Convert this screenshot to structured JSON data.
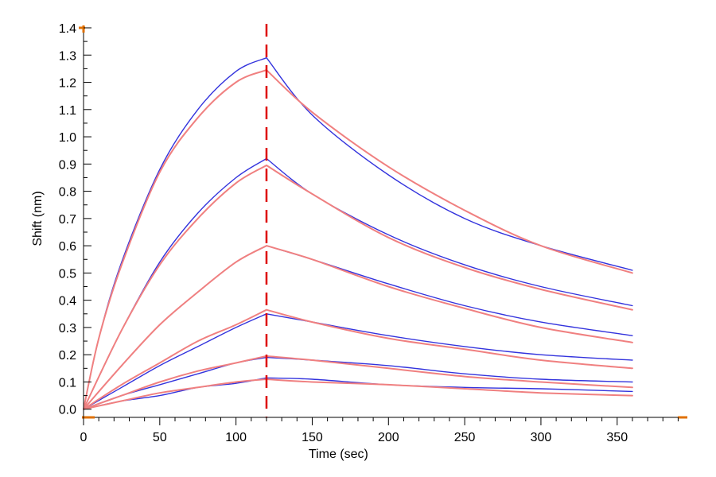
{
  "chart_data": {
    "type": "line",
    "xlabel": "Time (sec)",
    "ylabel": "Shift (nm)",
    "xlim": [
      0,
      395
    ],
    "ylim": [
      -0.03,
      1.4
    ],
    "x_ticks": [
      0,
      50,
      100,
      150,
      200,
      250,
      300,
      350
    ],
    "x_tick_labels": [
      "0",
      "50",
      "100",
      "150",
      "200",
      "250",
      "300",
      "350"
    ],
    "y_ticks": [
      0.0,
      0.1,
      0.2,
      0.3,
      0.4,
      0.5,
      0.6,
      0.7,
      0.8,
      0.9,
      1.0,
      1.1,
      1.2,
      1.3,
      1.4
    ],
    "y_tick_labels": [
      "0.0",
      "0.1",
      "0.2",
      "0.3",
      "0.4",
      "0.5",
      "0.6",
      "0.7",
      "0.8",
      "0.9",
      "1.0",
      "1.1",
      "1.2",
      "1.3",
      "1.4"
    ],
    "grid": false,
    "legend": "none",
    "marker_line_x": 120,
    "colors": {
      "measured": "#3333dd",
      "fit": "#f08080",
      "marker": "#dd0000",
      "axis_accent": "#e07000",
      "axis": "#000000"
    },
    "series": [
      {
        "kind": "measured",
        "points": [
          [
            0,
            0
          ],
          [
            10,
            0.26
          ],
          [
            25,
            0.54
          ],
          [
            50,
            0.88
          ],
          [
            75,
            1.1
          ],
          [
            100,
            1.24
          ],
          [
            120,
            1.29
          ],
          [
            150,
            1.08
          ],
          [
            200,
            0.86
          ],
          [
            250,
            0.7
          ],
          [
            300,
            0.6
          ],
          [
            360,
            0.51
          ]
        ]
      },
      {
        "kind": "fit",
        "points": [
          [
            0,
            0
          ],
          [
            10,
            0.26
          ],
          [
            25,
            0.53
          ],
          [
            50,
            0.87
          ],
          [
            75,
            1.07
          ],
          [
            100,
            1.2
          ],
          [
            120,
            1.245
          ],
          [
            150,
            1.09
          ],
          [
            200,
            0.89
          ],
          [
            250,
            0.73
          ],
          [
            300,
            0.6
          ],
          [
            360,
            0.5
          ]
        ]
      },
      {
        "kind": "measured",
        "points": [
          [
            0,
            0
          ],
          [
            25,
            0.29
          ],
          [
            50,
            0.54
          ],
          [
            75,
            0.72
          ],
          [
            100,
            0.85
          ],
          [
            120,
            0.92
          ],
          [
            150,
            0.79
          ],
          [
            200,
            0.64
          ],
          [
            250,
            0.53
          ],
          [
            300,
            0.45
          ],
          [
            360,
            0.38
          ]
        ]
      },
      {
        "kind": "fit",
        "points": [
          [
            0,
            0
          ],
          [
            25,
            0.29
          ],
          [
            50,
            0.53
          ],
          [
            75,
            0.7
          ],
          [
            100,
            0.83
          ],
          [
            120,
            0.895
          ],
          [
            150,
            0.79
          ],
          [
            200,
            0.63
          ],
          [
            250,
            0.52
          ],
          [
            300,
            0.44
          ],
          [
            360,
            0.365
          ]
        ]
      },
      {
        "kind": "measured",
        "points": [
          [
            0,
            0
          ],
          [
            25,
            0.16
          ],
          [
            50,
            0.31
          ],
          [
            75,
            0.43
          ],
          [
            100,
            0.54
          ],
          [
            120,
            0.6
          ],
          [
            150,
            0.55
          ],
          [
            200,
            0.46
          ],
          [
            250,
            0.38
          ],
          [
            300,
            0.32
          ],
          [
            360,
            0.27
          ]
        ]
      },
      {
        "kind": "fit",
        "points": [
          [
            0,
            0
          ],
          [
            25,
            0.16
          ],
          [
            50,
            0.31
          ],
          [
            75,
            0.43
          ],
          [
            100,
            0.54
          ],
          [
            120,
            0.6
          ],
          [
            150,
            0.55
          ],
          [
            200,
            0.45
          ],
          [
            250,
            0.37
          ],
          [
            300,
            0.3
          ],
          [
            360,
            0.245
          ]
        ]
      },
      {
        "kind": "measured",
        "points": [
          [
            0,
            0
          ],
          [
            25,
            0.08
          ],
          [
            50,
            0.16
          ],
          [
            75,
            0.23
          ],
          [
            100,
            0.3
          ],
          [
            120,
            0.35
          ],
          [
            150,
            0.32
          ],
          [
            200,
            0.27
          ],
          [
            250,
            0.23
          ],
          [
            300,
            0.2
          ],
          [
            360,
            0.18
          ]
        ]
      },
      {
        "kind": "fit",
        "points": [
          [
            0,
            0
          ],
          [
            25,
            0.09
          ],
          [
            50,
            0.17
          ],
          [
            75,
            0.25
          ],
          [
            100,
            0.31
          ],
          [
            120,
            0.365
          ],
          [
            150,
            0.32
          ],
          [
            200,
            0.26
          ],
          [
            250,
            0.22
          ],
          [
            300,
            0.18
          ],
          [
            360,
            0.15
          ]
        ]
      },
      {
        "kind": "measured",
        "points": [
          [
            0,
            0
          ],
          [
            25,
            0.05
          ],
          [
            50,
            0.09
          ],
          [
            75,
            0.13
          ],
          [
            100,
            0.17
          ],
          [
            120,
            0.19
          ],
          [
            150,
            0.18
          ],
          [
            200,
            0.16
          ],
          [
            250,
            0.13
          ],
          [
            300,
            0.11
          ],
          [
            360,
            0.1
          ]
        ]
      },
      {
        "kind": "fit",
        "points": [
          [
            0,
            0
          ],
          [
            25,
            0.05
          ],
          [
            50,
            0.1
          ],
          [
            75,
            0.14
          ],
          [
            100,
            0.17
          ],
          [
            120,
            0.195
          ],
          [
            150,
            0.18
          ],
          [
            200,
            0.15
          ],
          [
            250,
            0.12
          ],
          [
            300,
            0.1
          ],
          [
            360,
            0.08
          ]
        ]
      },
      {
        "kind": "measured",
        "points": [
          [
            0,
            0
          ],
          [
            25,
            0.03
          ],
          [
            50,
            0.05
          ],
          [
            75,
            0.08
          ],
          [
            100,
            0.095
          ],
          [
            120,
            0.115
          ],
          [
            150,
            0.11
          ],
          [
            200,
            0.09
          ],
          [
            250,
            0.08
          ],
          [
            300,
            0.075
          ],
          [
            360,
            0.065
          ]
        ]
      },
      {
        "kind": "fit",
        "points": [
          [
            0,
            0
          ],
          [
            25,
            0.03
          ],
          [
            50,
            0.06
          ],
          [
            75,
            0.08
          ],
          [
            100,
            0.1
          ],
          [
            120,
            0.11
          ],
          [
            150,
            0.1
          ],
          [
            200,
            0.09
          ],
          [
            250,
            0.075
          ],
          [
            300,
            0.06
          ],
          [
            360,
            0.05
          ]
        ]
      }
    ]
  }
}
